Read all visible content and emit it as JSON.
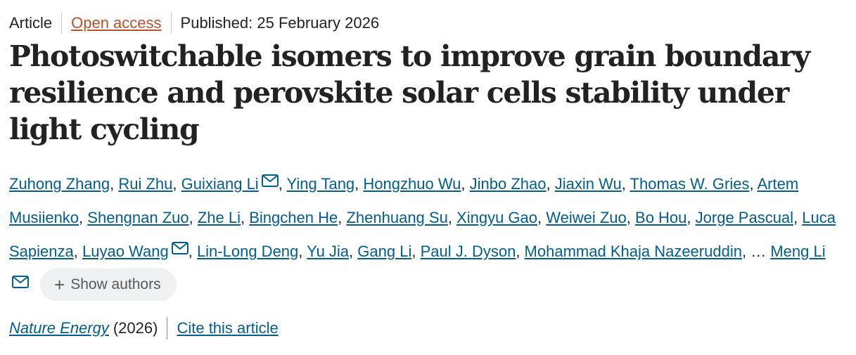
{
  "meta": {
    "type": "Article",
    "access": "Open access",
    "published": "Published: 25 February 2026"
  },
  "title": "Photoswitchable isomers to improve grain boundary resilience and perovskite solar cells stability under light cycling",
  "authors": [
    {
      "name": "Zuhong Zhang",
      "mail": false
    },
    {
      "name": "Rui Zhu",
      "mail": false
    },
    {
      "name": "Guixiang Li",
      "mail": true
    },
    {
      "name": "Ying Tang",
      "mail": false
    },
    {
      "name": "Hongzhuo Wu",
      "mail": false
    },
    {
      "name": "Jinbo Zhao",
      "mail": false
    },
    {
      "name": "Jiaxin Wu",
      "mail": false
    },
    {
      "name": "Thomas W. Gries",
      "mail": false
    },
    {
      "name": "Artem Musiienko",
      "mail": false
    },
    {
      "name": "Shengnan Zuo",
      "mail": false
    },
    {
      "name": "Zhe Li",
      "mail": false
    },
    {
      "name": "Bingchen He",
      "mail": false
    },
    {
      "name": "Zhenhuang Su",
      "mail": false
    },
    {
      "name": "Xingyu Gao",
      "mail": false
    },
    {
      "name": "Weiwei Zuo",
      "mail": false
    },
    {
      "name": "Bo Hou",
      "mail": false
    },
    {
      "name": "Jorge Pascual",
      "mail": false
    },
    {
      "name": "Luca Sapienza",
      "mail": false
    },
    {
      "name": "Luyao Wang",
      "mail": true
    },
    {
      "name": "Lin-Long Deng",
      "mail": false
    },
    {
      "name": "Yu Jia",
      "mail": false
    },
    {
      "name": "Gang Li",
      "mail": false
    },
    {
      "name": "Paul J. Dyson",
      "mail": false
    },
    {
      "name": "Mohammad Khaja Nazeeruddin",
      "mail": false
    }
  ],
  "ellipsis": "…",
  "last_author": {
    "name": "Meng Li",
    "mail": true
  },
  "show_authors_label": "Show authors",
  "journal": {
    "name": "Nature Energy",
    "year": "(2026)",
    "cite_label": "Cite this article"
  },
  "colors": {
    "link": "#025e8d",
    "access": "#b7522a",
    "text": "#222222",
    "button_bg": "#eef0f2"
  },
  "icons": {
    "mail": "mail-icon",
    "plus": "plus-icon"
  }
}
